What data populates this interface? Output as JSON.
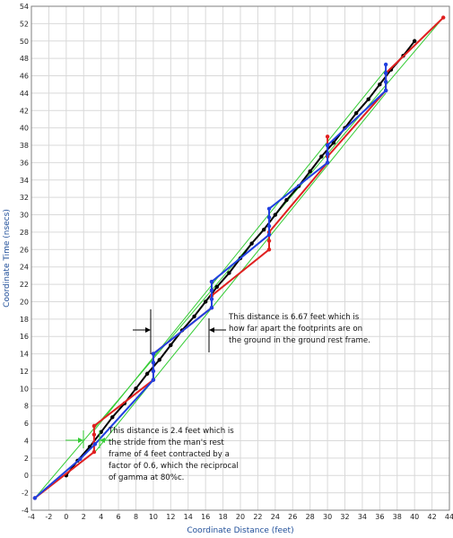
{
  "chart_data": {
    "type": "line",
    "xlabel": "Coordinate Distance (feet)",
    "ylabel": "Coordinate Time (nsecs)",
    "xlim": [
      -4,
      44
    ],
    "ylim": [
      -4,
      54
    ],
    "x_ticks": [
      -4,
      -2,
      0,
      2,
      4,
      6,
      8,
      10,
      12,
      14,
      16,
      18,
      20,
      22,
      24,
      26,
      28,
      30,
      32,
      34,
      36,
      38,
      40,
      42,
      44
    ],
    "y_ticks": [
      -4,
      -2,
      0,
      2,
      4,
      6,
      8,
      10,
      12,
      14,
      16,
      18,
      20,
      22,
      24,
      26,
      28,
      30,
      32,
      34,
      36,
      38,
      40,
      42,
      44,
      46,
      48,
      50,
      52,
      54
    ],
    "grid": true,
    "colors": {
      "black": "#000000",
      "red": "#e02020",
      "blue": "#2040e0",
      "green": "#33cc33",
      "grid": "#d9d9d9"
    },
    "series": [
      {
        "color": "black",
        "x": [
          0,
          1.3,
          2.7,
          4.0,
          5.3,
          6.7,
          8.0,
          9.3,
          10.7,
          12.0,
          13.3,
          14.7,
          16.0,
          17.3,
          18.7,
          20.0,
          21.3,
          22.7,
          24.0,
          25.3,
          26.7,
          28.0,
          29.3,
          30.7,
          32.0,
          33.3,
          34.7,
          36.0,
          37.3,
          38.7,
          40.0
        ],
        "y": [
          0,
          1.7,
          3.3,
          5.0,
          6.7,
          8.3,
          10.0,
          11.7,
          13.3,
          15.0,
          16.7,
          18.3,
          20.0,
          21.7,
          23.3,
          25.0,
          26.7,
          28.3,
          30.0,
          31.7,
          33.3,
          35.0,
          36.7,
          38.3,
          40.0,
          41.7,
          43.3,
          45.0,
          46.7,
          48.3,
          50.0
        ]
      },
      {
        "color": "red",
        "x": [
          -3.6,
          3.2,
          3.2,
          3.2,
          3.2,
          10.0,
          10.0,
          10.0,
          10.0,
          16.7,
          16.7,
          16.7,
          16.7,
          16.7,
          23.3,
          23.3,
          23.3,
          30.0,
          30.0,
          30.0,
          30.0,
          30.0,
          36.7,
          36.7,
          36.7,
          43.3
        ],
        "y": [
          -2.6,
          2.7,
          3.7,
          4.7,
          5.7,
          11.0,
          12.0,
          13.0,
          14.0,
          19.3,
          20.3,
          21.3,
          22.3,
          20.7,
          26.0,
          27.0,
          28.0,
          36.0,
          37.0,
          38.0,
          39.0,
          36.7,
          44.3,
          45.3,
          46.3,
          52.7
        ]
      },
      {
        "color": "blue",
        "x": [
          -3.6,
          1.6,
          3.3,
          10.0,
          10.0,
          10.0,
          10.0,
          16.7,
          16.7,
          16.7,
          16.7,
          23.3,
          23.3,
          23.3,
          23.3,
          30.0,
          30.0,
          30.0,
          36.7,
          36.7,
          36.7,
          36.7
        ],
        "y": [
          -2.6,
          1.9,
          3.6,
          11.0,
          12.0,
          13.0,
          14.0,
          19.3,
          20.3,
          21.3,
          22.3,
          27.7,
          28.7,
          29.7,
          30.7,
          36.0,
          37.0,
          38.0,
          44.3,
          45.3,
          46.3,
          47.3
        ]
      },
      {
        "color": "green",
        "x": [
          -3.6,
          43.3
        ],
        "y": [
          -2.6,
          52.7
        ]
      },
      {
        "color": "green",
        "x": [
          3.3,
          36.7
        ],
        "y": [
          5.3,
          46.7
        ]
      },
      {
        "color": "green",
        "x": [
          3.3,
          36.7
        ],
        "y": [
          2.7,
          44.0
        ]
      }
    ],
    "annotations": [
      "This distance is 6.67 feet which is how far apart the footprints are on the ground in the ground rest frame.",
      "This distance is 2.4 feet which is the stride from the man's rest frame of 4 feet contracted by a factor of 0.6, which the reciprocal of gamma at 80%c."
    ]
  }
}
